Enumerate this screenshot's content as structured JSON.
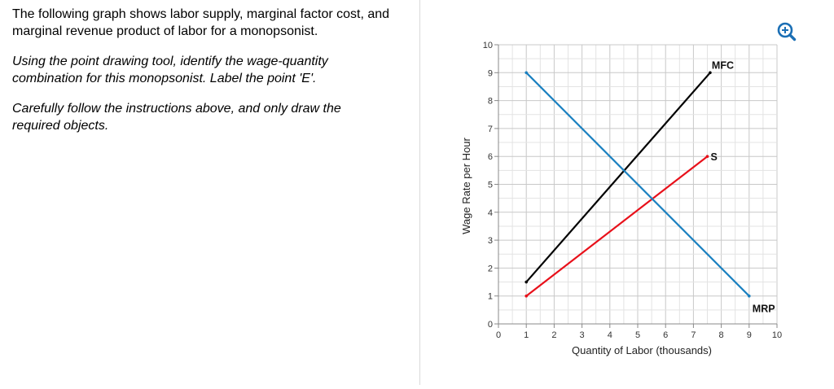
{
  "question": {
    "intro_line1": "The following graph shows labor supply, marginal factor cost, and",
    "intro_line2": "marginal revenue product of labor for a monopsonist.",
    "instr_line1": "Using the point drawing tool, identify the wage-quantity",
    "instr_line2": "combination for this monopsonist. Label the point 'E'.",
    "note_line1": "Carefully follow the instructions above, and only draw the",
    "note_line2": "required objects."
  },
  "toolbar": {
    "zoom_icon": "zoom-in-icon",
    "zoom_color": "#1b6fb5"
  },
  "chart_data": {
    "type": "line",
    "xlabel": "Quantity of Labor (thousands)",
    "ylabel": "Wage Rate per Hour",
    "xlim": [
      0,
      10
    ],
    "ylim": [
      0,
      10
    ],
    "x_ticks": [
      "0",
      "1",
      "2",
      "3",
      "4",
      "5",
      "6",
      "7",
      "8",
      "9",
      "10"
    ],
    "y_ticks": [
      "0",
      "1",
      "2",
      "3",
      "4",
      "5",
      "6",
      "7",
      "8",
      "9",
      "10"
    ],
    "minor_grid_step": 0.5,
    "grid": true,
    "series": [
      {
        "name": "MFC",
        "color": "#000000",
        "x": [
          1,
          7.6
        ],
        "y": [
          1.5,
          9.0
        ]
      },
      {
        "name": "S",
        "color": "#e8101a",
        "x": [
          1,
          7.5
        ],
        "y": [
          1.0,
          6.0
        ]
      },
      {
        "name": "MRP",
        "color": "#1a80c0",
        "x": [
          1,
          9
        ],
        "y": [
          9.0,
          1.0
        ]
      }
    ]
  }
}
